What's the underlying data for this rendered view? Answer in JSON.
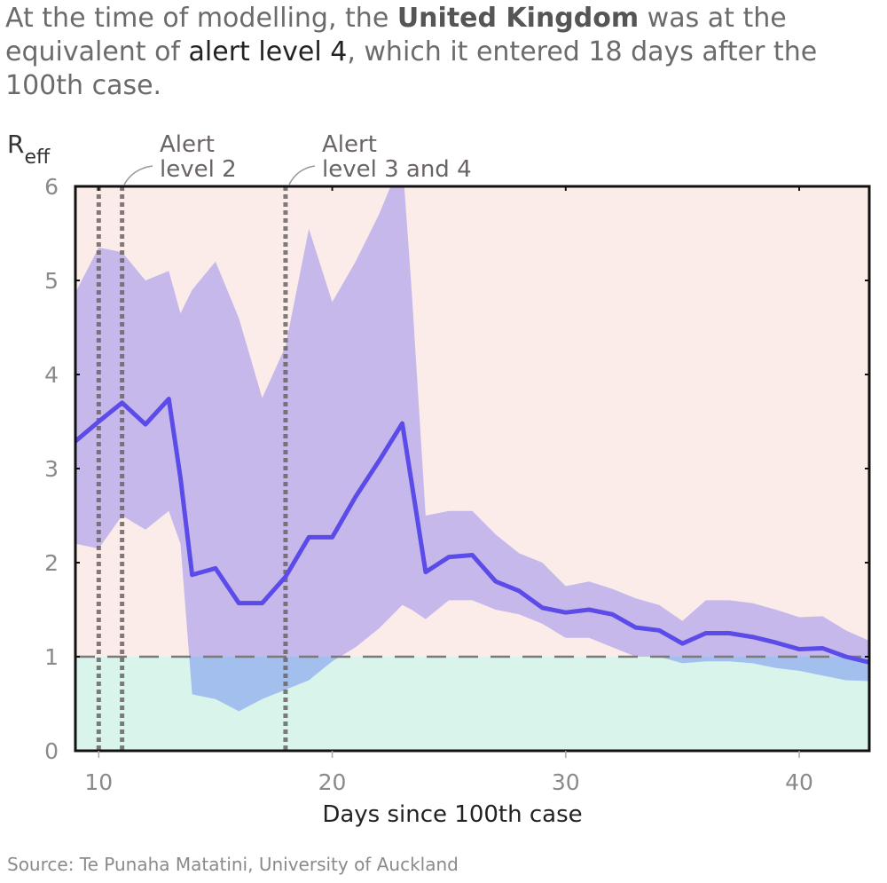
{
  "headline": {
    "p1": "At the time of modelling, the ",
    "country": "United Kingdom",
    "p2": " was at the equivalent of ",
    "level": "alert level 4",
    "p3": ", which it entered 18 days after the 100th case."
  },
  "source": "Source: Te Punaha Matatini, University of Auckland",
  "colors": {
    "above_one_bg": "#fbece9",
    "below_one_bg": "#d9f4eb",
    "band": "#c6b8ea",
    "band_below_one": "#a3bfee",
    "median_line": "#5b4be8",
    "alert_lines": "#6b6464"
  },
  "chart_data": {
    "type": "line",
    "ylabel_main": "R",
    "ylabel_sub": "eff",
    "xlabel": "Days since 100th case",
    "xlim": [
      9,
      43
    ],
    "ylim": [
      0,
      6
    ],
    "xticks": [
      10,
      20,
      30,
      40
    ],
    "yticks": [
      0,
      1,
      2,
      3,
      4,
      5,
      6
    ],
    "grid": false,
    "reference_line": {
      "y": 1,
      "style": "dashed"
    },
    "alerts": [
      {
        "x": 10,
        "label": ""
      },
      {
        "x": 11,
        "label_line1": "Alert",
        "label_line2": "level 2"
      },
      {
        "x": 18,
        "label_line1": "Alert",
        "label_line2": "level 3 and 4"
      }
    ],
    "x": [
      9,
      10,
      11,
      12,
      13,
      13.5,
      14,
      15,
      16,
      17,
      18,
      19,
      20,
      21,
      22,
      23,
      23.4,
      24,
      25,
      26,
      27,
      28,
      29,
      30,
      31,
      32,
      33,
      34,
      35,
      36,
      37,
      38,
      39,
      40,
      41,
      42,
      43
    ],
    "median": [
      3.29,
      3.5,
      3.7,
      3.47,
      3.74,
      2.9,
      1.87,
      1.94,
      1.57,
      1.57,
      1.85,
      2.27,
      2.27,
      2.7,
      3.08,
      3.48,
      2.85,
      1.9,
      2.06,
      2.08,
      1.8,
      1.7,
      1.52,
      1.47,
      1.5,
      1.45,
      1.31,
      1.28,
      1.14,
      1.25,
      1.25,
      1.21,
      1.15,
      1.08,
      1.09,
      1.0,
      0.94
    ],
    "upper": [
      4.87,
      5.35,
      5.3,
      5.0,
      5.1,
      4.65,
      4.9,
      5.2,
      4.6,
      3.75,
      4.3,
      5.55,
      4.77,
      5.2,
      5.7,
      6.3,
      4.9,
      2.5,
      2.55,
      2.55,
      2.3,
      2.1,
      2.0,
      1.75,
      1.8,
      1.72,
      1.62,
      1.55,
      1.38,
      1.6,
      1.6,
      1.57,
      1.5,
      1.42,
      1.43,
      1.28,
      1.17
    ],
    "lower": [
      2.2,
      2.15,
      2.5,
      2.35,
      2.55,
      2.2,
      0.6,
      0.55,
      0.42,
      0.55,
      0.65,
      0.75,
      0.95,
      1.1,
      1.3,
      1.55,
      1.5,
      1.4,
      1.6,
      1.6,
      1.5,
      1.45,
      1.35,
      1.2,
      1.2,
      1.1,
      1.0,
      1.0,
      0.93,
      0.95,
      0.95,
      0.93,
      0.88,
      0.85,
      0.8,
      0.75,
      0.74
    ]
  }
}
